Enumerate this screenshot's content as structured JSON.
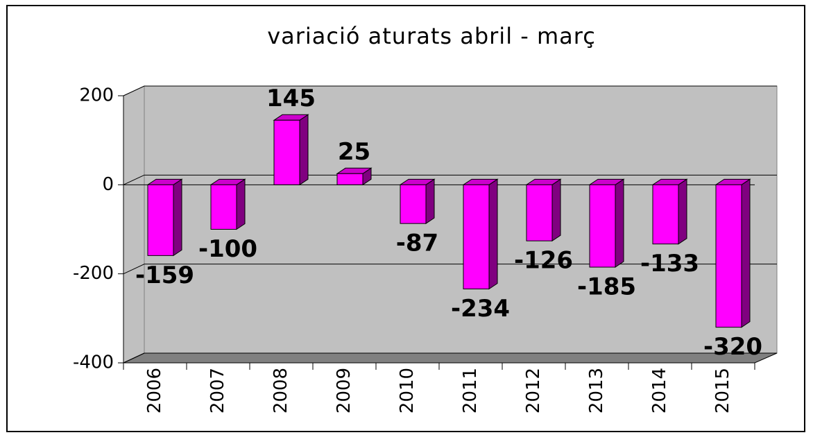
{
  "chart_data": {
    "type": "bar",
    "title": "variació aturats abril - març",
    "categories": [
      "2006",
      "2007",
      "2008",
      "2009",
      "2010",
      "2011",
      "2012",
      "2013",
      "2014",
      "2015"
    ],
    "values": [
      -159,
      -100,
      145,
      25,
      -87,
      -234,
      -126,
      -185,
      -133,
      -320
    ],
    "color": "#ff00ff",
    "ylim": [
      -400,
      200
    ],
    "yticks": [
      -400,
      -200,
      0,
      200
    ],
    "grid": true
  }
}
